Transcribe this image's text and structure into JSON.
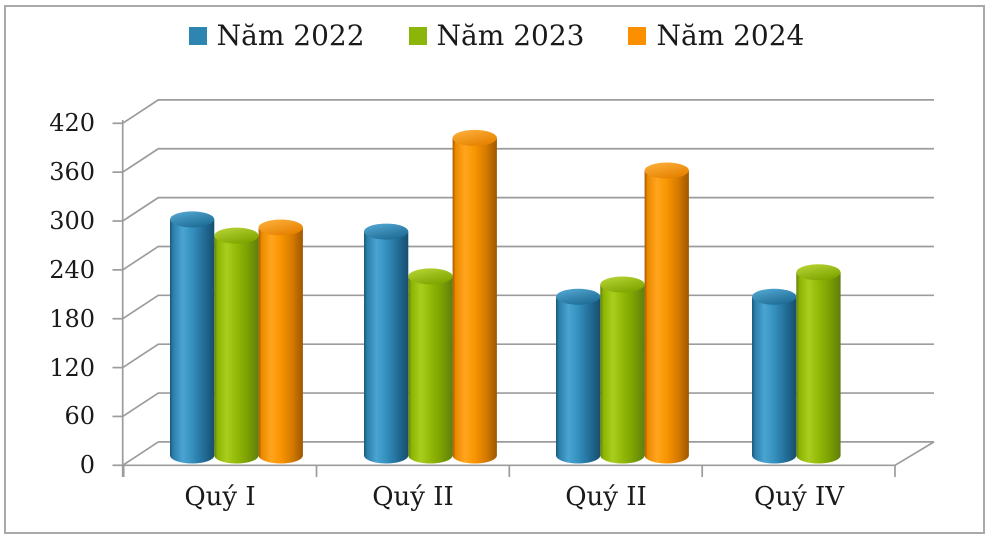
{
  "chart_data": {
    "type": "bar",
    "subtype": "3d-cylinder-clustered",
    "title": "",
    "xlabel": "",
    "ylabel": "",
    "categories": [
      "Quý I",
      "Quý II",
      "Quý II",
      "Quý IV"
    ],
    "series": [
      {
        "name": "Năm 2022",
        "color": "#2E86B0",
        "values": [
          290,
          275,
          195,
          195
        ],
        "body_gradient": [
          [
            0,
            "#19577B"
          ],
          [
            0.07,
            "#2B7FA9"
          ],
          [
            0.28,
            "#4BA4D2"
          ],
          [
            0.5,
            "#3590BE"
          ],
          [
            0.75,
            "#236F9A"
          ],
          [
            1,
            "#174E6E"
          ]
        ],
        "top_gradient": [
          [
            0,
            "#57ACD6"
          ],
          [
            1,
            "#1F6E97"
          ]
        ]
      },
      {
        "name": "Năm 2023",
        "color": "#8CB50A",
        "values": [
          270,
          220,
          210,
          225
        ],
        "body_gradient": [
          [
            0,
            "#637F10"
          ],
          [
            0.07,
            "#8CB303"
          ],
          [
            0.28,
            "#AACE1E"
          ],
          [
            0.5,
            "#93BA06"
          ],
          [
            0.75,
            "#7BA003"
          ],
          [
            1,
            "#5F7E0E"
          ]
        ],
        "top_gradient": [
          [
            0,
            "#BBD839"
          ],
          [
            1,
            "#7FA500"
          ]
        ]
      },
      {
        "name": "Năm 2024",
        "color": "#FB8F00",
        "values": [
          280,
          390,
          350,
          null
        ],
        "body_gradient": [
          [
            0,
            "#A15A00"
          ],
          [
            0.07,
            "#ED8A00"
          ],
          [
            0.28,
            "#FFA51E"
          ],
          [
            0.5,
            "#F99500"
          ],
          [
            0.75,
            "#D67B00"
          ],
          [
            1,
            "#9F5700"
          ]
        ],
        "top_gradient": [
          [
            0,
            "#FFB340"
          ],
          [
            1,
            "#E68200"
          ]
        ]
      }
    ],
    "yticks": [
      0,
      60,
      120,
      180,
      240,
      300,
      360,
      420
    ],
    "ylim": [
      0,
      420
    ],
    "grid": true,
    "legend_position": "top"
  },
  "colors": {
    "axis_line": "#9C9C9C",
    "text": "#1A1A1A",
    "frame_border": "#A9A9A9",
    "background": "#FFFFFF"
  }
}
